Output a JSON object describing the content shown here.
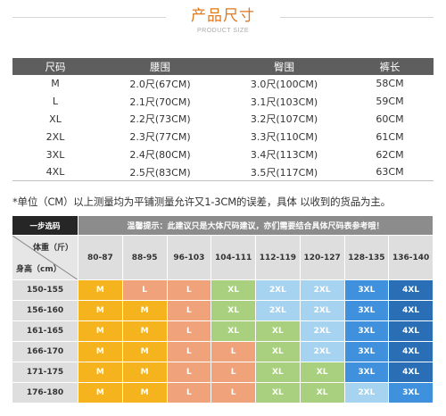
{
  "header": {
    "title": "产品尺寸",
    "subtitle": "PRODUCT SIZE"
  },
  "size_table": {
    "columns": [
      "尺码",
      "腰围",
      "臀围",
      "裤长"
    ],
    "rows": [
      [
        "M",
        "2.0尺(67CM)",
        "3.0尺(100CM)",
        "58CM"
      ],
      [
        "L",
        "2.1尺(70CM)",
        "3.1尺(103CM)",
        "59CM"
      ],
      [
        "XL",
        "2.2尺(73CM)",
        "3.2尺(107CM)",
        "60CM"
      ],
      [
        "2XL",
        "2.3尺(77CM)",
        "3.3尺(110CM)",
        "61CM"
      ],
      [
        "3XL",
        "2.4尺(80CM)",
        "3.4尺(113CM)",
        "62CM"
      ],
      [
        "4XL",
        "2.5尺(83CM)",
        "3.5尺(117CM)",
        "63CM"
      ]
    ]
  },
  "note": "*单位（CM）以上测量均为平铺测量允许又1-3CM的误差，具体 以收到的货品为主。",
  "recommend": {
    "corner_title": "一步选码",
    "tip": "温馨提示：此建议只是大体尺码建议，亦们需要结合具体尺码表参考哦！",
    "weight_label": "体重（斤）",
    "height_label": "身高（cm）",
    "weights": [
      "80-87",
      "88-95",
      "96-103",
      "104-111",
      "112-119",
      "120-127",
      "128-135",
      "136-140"
    ],
    "heights": [
      "150-155",
      "156-160",
      "161-165",
      "166-170",
      "171-175",
      "176-180"
    ],
    "cells": [
      [
        "M",
        "L",
        "L",
        "XL",
        "2XL",
        "2XL",
        "3XL",
        "4XL"
      ],
      [
        "M",
        "M",
        "L",
        "XL",
        "2XL",
        "2XL",
        "3XL",
        "4XL"
      ],
      [
        "M",
        "M",
        "L",
        "XL",
        "XL",
        "2XL",
        "3XL",
        "4XL"
      ],
      [
        "M",
        "M",
        "L",
        "L",
        "XL",
        "2XL",
        "3XL",
        "4XL"
      ],
      [
        "M",
        "M",
        "L",
        "L",
        "XL",
        "XL",
        "3XL",
        "4XL"
      ],
      [
        "M",
        "M",
        "L",
        "L",
        "XL",
        "XL",
        "2XL",
        "3XL"
      ]
    ],
    "colors": {
      "M": "#f5b31d",
      "L": "#f0a37a",
      "XL": "#a9d07f",
      "2XL": "#a6d3f0",
      "3XL": "#3f90dd",
      "4XL": "#2a6fb5"
    }
  }
}
